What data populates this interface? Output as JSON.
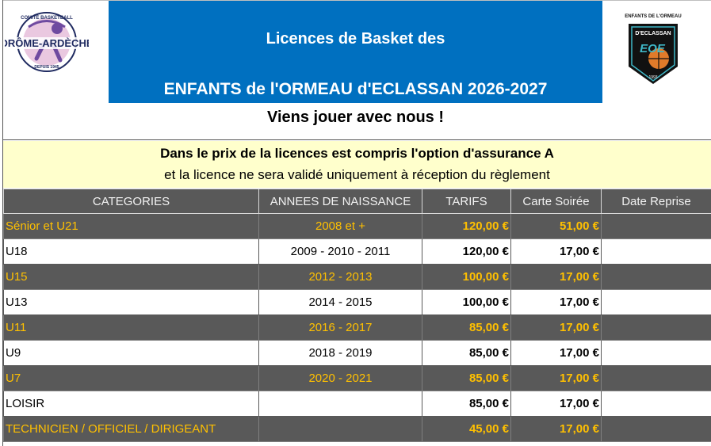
{
  "header": {
    "left_logo": {
      "icon": "comite-basketball-logo",
      "top_text": "COMITÉ BASKETBALL",
      "main_text": "DRÔME-ARDÈCHE",
      "bottom_text": "DEPUIS 1945",
      "colors": {
        "violet": "#6f4aa0",
        "pink": "#d99bc6",
        "navy": "#1f2a60"
      }
    },
    "banner": {
      "line1": "Licences de Basket des",
      "line2": "ENFANTS de l'ORMEAU d'ECLASSAN 2026-2027",
      "color": "#0070c0"
    },
    "right_logo": {
      "icon": "eoe-club-logo",
      "top_text": "ENFANTS DE L'ORMEAU",
      "name_text": "D'ECLASSAN",
      "badge_text": "EOE",
      "year_text": "1993",
      "colors": {
        "teal": "#3fb8c8",
        "orange": "#e07b2a",
        "black": "#111111"
      }
    },
    "tagline": "Viens jouer avec nous !"
  },
  "notice": {
    "line1": "Dans le prix de la licences est compris l'option d'assurance A",
    "line2": "et la licence ne sera validé uniquement à réception du règlement",
    "background": "#ffffcc"
  },
  "table": {
    "headers": [
      "CATEGORIES",
      "ANNEES DE NAISSANCE",
      "TARIFS",
      "Carte Soirée",
      "Date Reprise"
    ],
    "rows": [
      {
        "category": "Sénior et U21",
        "years": "2008 et +",
        "price": "120,00 €",
        "card": "51,00 €",
        "reprise": "",
        "style": "dark"
      },
      {
        "category": "U18",
        "years": "2009 - 2010 - 2011",
        "price": "120,00 €",
        "card": "17,00 €",
        "reprise": "",
        "style": "light"
      },
      {
        "category": "U15",
        "years": "2012 - 2013",
        "price": "100,00 €",
        "card": "17,00 €",
        "reprise": "",
        "style": "dark"
      },
      {
        "category": "U13",
        "years": "2014 - 2015",
        "price": "100,00 €",
        "card": "17,00 €",
        "reprise": "",
        "style": "light"
      },
      {
        "category": "U11",
        "years": "2016 - 2017",
        "price": "85,00 €",
        "card": "17,00 €",
        "reprise": "",
        "style": "dark"
      },
      {
        "category": "U9",
        "years": "2018 - 2019",
        "price": "85,00 €",
        "card": "17,00 €",
        "reprise": "",
        "style": "light"
      },
      {
        "category": "U7",
        "years": "2020 - 2021",
        "price": "85,00 €",
        "card": "17,00 €",
        "reprise": "",
        "style": "dark"
      },
      {
        "category": "LOISIR",
        "years": "",
        "price": "85,00 €",
        "card": "17,00 €",
        "reprise": "",
        "style": "light"
      },
      {
        "category": "TECHNICIEN / OFFICIEL / DIRIGEANT",
        "years": "",
        "price": "45,00 €",
        "card": "17,00 €",
        "reprise": "",
        "style": "dark"
      }
    ],
    "colors": {
      "header_bg": "#595959",
      "dark_row_bg": "#595959",
      "dark_row_text": "#ffc000"
    }
  }
}
